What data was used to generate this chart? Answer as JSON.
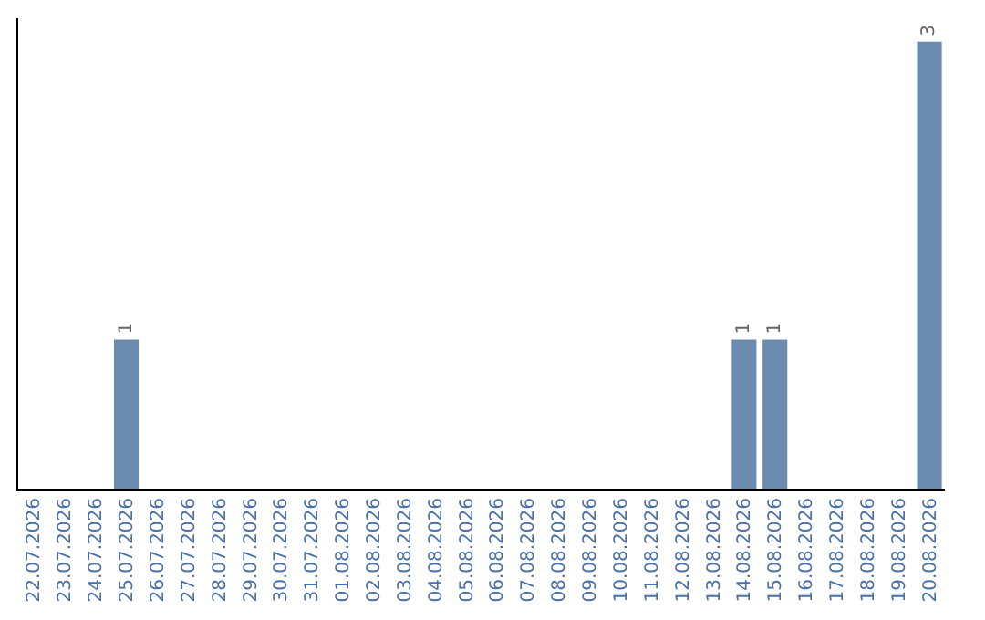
{
  "chart_data": {
    "type": "bar",
    "categories": [
      "22.07.2026",
      "23.07.2026",
      "24.07.2026",
      "25.07.2026",
      "26.07.2026",
      "27.07.2026",
      "28.07.2026",
      "29.07.2026",
      "30.07.2026",
      "31.07.2026",
      "01.08.2026",
      "02.08.2026",
      "03.08.2026",
      "04.08.2026",
      "05.08.2026",
      "06.08.2026",
      "07.08.2026",
      "08.08.2026",
      "09.08.2026",
      "10.08.2026",
      "11.08.2026",
      "12.08.2026",
      "13.08.2026",
      "14.08.2026",
      "15.08.2026",
      "16.08.2026",
      "17.08.2026",
      "18.08.2026",
      "19.08.2026",
      "20.08.2026"
    ],
    "values": [
      0,
      0,
      0,
      1,
      0,
      0,
      0,
      0,
      0,
      0,
      0,
      0,
      0,
      0,
      0,
      0,
      0,
      0,
      0,
      0,
      0,
      0,
      0,
      1,
      1,
      0,
      0,
      0,
      0,
      3
    ],
    "value_labels": [
      null,
      null,
      null,
      "1",
      null,
      null,
      null,
      null,
      null,
      null,
      null,
      null,
      null,
      null,
      null,
      null,
      null,
      null,
      null,
      null,
      null,
      null,
      null,
      "1",
      "1",
      null,
      null,
      null,
      null,
      "3"
    ],
    "color": "#6b8cae",
    "tick_labels": "x",
    "grid": false,
    "legend": false
  }
}
